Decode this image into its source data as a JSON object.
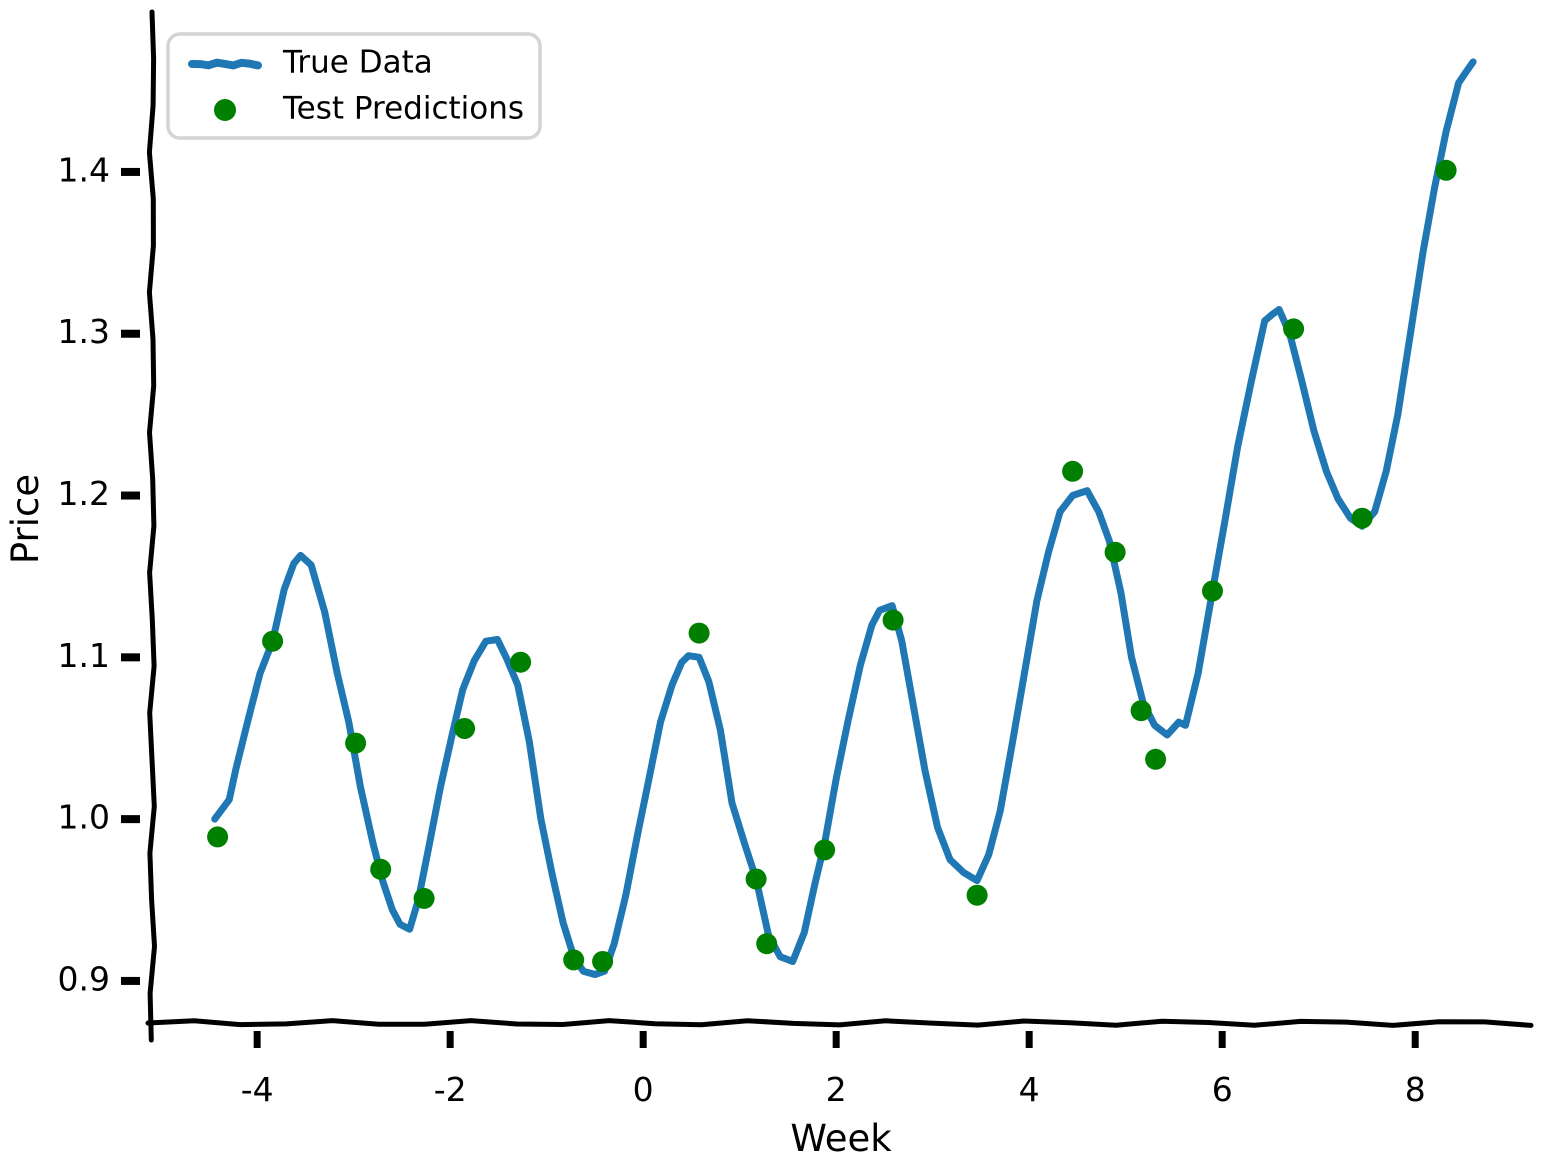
{
  "figure": {
    "background": "#ffffff",
    "style": "xkcd-sketch"
  },
  "legend": {
    "items": [
      {
        "label": "True Data",
        "marker": "line",
        "color": "#1f77b4"
      },
      {
        "label": "Test Predictions",
        "marker": "dot",
        "color": "#008000"
      }
    ]
  },
  "axes": {
    "x_label": "Week",
    "y_label": "Price",
    "x_tick_labels": [
      "-4",
      "-2",
      "0",
      "2",
      "4",
      "6",
      "8"
    ],
    "y_tick_labels": [
      "0.9",
      "1.0",
      "1.1",
      "1.2",
      "1.3",
      "1.4"
    ]
  },
  "chart_data": {
    "type": "line",
    "title": "",
    "xlabel": "Week",
    "ylabel": "Price",
    "xlim": [
      -5.1,
      9.2
    ],
    "ylim": [
      0.874,
      1.497
    ],
    "x_ticks": [
      -4,
      -2,
      0,
      2,
      4,
      6,
      8
    ],
    "y_ticks": [
      0.9,
      1.0,
      1.1,
      1.2,
      1.3,
      1.4
    ],
    "grid": false,
    "legend_position": "upper left",
    "series": [
      {
        "name": "True Data",
        "type": "line",
        "color": "#1f77b4",
        "line_width": 7,
        "points": [
          [
            -4.44,
            1.0
          ],
          [
            -4.29,
            1.012
          ],
          [
            -4.22,
            1.031
          ],
          [
            -4.1,
            1.06
          ],
          [
            -3.97,
            1.09
          ],
          [
            -3.84,
            1.11
          ],
          [
            -3.72,
            1.142
          ],
          [
            -3.62,
            1.158
          ],
          [
            -3.55,
            1.163
          ],
          [
            -3.44,
            1.157
          ],
          [
            -3.3,
            1.128
          ],
          [
            -3.17,
            1.09
          ],
          [
            -3.05,
            1.06
          ],
          [
            -2.93,
            1.02
          ],
          [
            -2.8,
            0.985
          ],
          [
            -2.7,
            0.962
          ],
          [
            -2.6,
            0.944
          ],
          [
            -2.52,
            0.935
          ],
          [
            -2.42,
            0.932
          ],
          [
            -2.33,
            0.95
          ],
          [
            -2.22,
            0.983
          ],
          [
            -2.1,
            1.02
          ],
          [
            -1.98,
            1.052
          ],
          [
            -1.87,
            1.08
          ],
          [
            -1.75,
            1.098
          ],
          [
            -1.63,
            1.11
          ],
          [
            -1.51,
            1.111
          ],
          [
            -1.42,
            1.1
          ],
          [
            -1.3,
            1.083
          ],
          [
            -1.18,
            1.048
          ],
          [
            -1.06,
            1.0
          ],
          [
            -0.94,
            0.965
          ],
          [
            -0.83,
            0.936
          ],
          [
            -0.72,
            0.915
          ],
          [
            -0.62,
            0.906
          ],
          [
            -0.5,
            0.904
          ],
          [
            -0.4,
            0.906
          ],
          [
            -0.3,
            0.923
          ],
          [
            -0.18,
            0.953
          ],
          [
            -0.06,
            0.99
          ],
          [
            0.06,
            1.025
          ],
          [
            0.18,
            1.06
          ],
          [
            0.3,
            1.083
          ],
          [
            0.4,
            1.097
          ],
          [
            0.47,
            1.101
          ],
          [
            0.58,
            1.1
          ],
          [
            0.68,
            1.085
          ],
          [
            0.8,
            1.055
          ],
          [
            0.92,
            1.01
          ],
          [
            1.05,
            0.985
          ],
          [
            1.17,
            0.963
          ],
          [
            1.3,
            0.928
          ],
          [
            1.42,
            0.915
          ],
          [
            1.55,
            0.912
          ],
          [
            1.67,
            0.93
          ],
          [
            1.78,
            0.96
          ],
          [
            1.88,
            0.985
          ],
          [
            2.0,
            1.025
          ],
          [
            2.12,
            1.06
          ],
          [
            2.25,
            1.095
          ],
          [
            2.37,
            1.12
          ],
          [
            2.45,
            1.129
          ],
          [
            2.58,
            1.132
          ],
          [
            2.68,
            1.11
          ],
          [
            2.8,
            1.07
          ],
          [
            2.92,
            1.03
          ],
          [
            3.05,
            0.995
          ],
          [
            3.18,
            0.975
          ],
          [
            3.32,
            0.967
          ],
          [
            3.46,
            0.962
          ],
          [
            3.58,
            0.978
          ],
          [
            3.7,
            1.005
          ],
          [
            3.82,
            1.045
          ],
          [
            3.95,
            1.09
          ],
          [
            4.08,
            1.135
          ],
          [
            4.2,
            1.165
          ],
          [
            4.32,
            1.19
          ],
          [
            4.45,
            1.2
          ],
          [
            4.6,
            1.203
          ],
          [
            4.72,
            1.19
          ],
          [
            4.83,
            1.172
          ],
          [
            4.95,
            1.14
          ],
          [
            5.06,
            1.1
          ],
          [
            5.18,
            1.072
          ],
          [
            5.3,
            1.058
          ],
          [
            5.43,
            1.052
          ],
          [
            5.55,
            1.06
          ],
          [
            5.62,
            1.058
          ],
          [
            5.75,
            1.09
          ],
          [
            5.9,
            1.141
          ],
          [
            6.03,
            1.185
          ],
          [
            6.16,
            1.23
          ],
          [
            6.3,
            1.27
          ],
          [
            6.44,
            1.308
          ],
          [
            6.52,
            1.312
          ],
          [
            6.59,
            1.315
          ],
          [
            6.7,
            1.3
          ],
          [
            6.82,
            1.272
          ],
          [
            6.95,
            1.24
          ],
          [
            7.08,
            1.215
          ],
          [
            7.2,
            1.198
          ],
          [
            7.33,
            1.186
          ],
          [
            7.45,
            1.181
          ],
          [
            7.58,
            1.19
          ],
          [
            7.7,
            1.215
          ],
          [
            7.82,
            1.25
          ],
          [
            7.95,
            1.3
          ],
          [
            8.08,
            1.35
          ],
          [
            8.2,
            1.39
          ],
          [
            8.32,
            1.425
          ],
          [
            8.45,
            1.455
          ],
          [
            8.53,
            1.462
          ],
          [
            8.6,
            1.468
          ]
        ]
      },
      {
        "name": "Test Predictions",
        "type": "scatter",
        "color": "#008000",
        "marker_radius": 10.5,
        "points": [
          [
            -4.41,
            0.989
          ],
          [
            -3.84,
            1.11
          ],
          [
            -2.98,
            1.047
          ],
          [
            -2.72,
            0.969
          ],
          [
            -2.27,
            0.951
          ],
          [
            -1.85,
            1.056
          ],
          [
            -1.27,
            1.097
          ],
          [
            -0.72,
            0.913
          ],
          [
            -0.42,
            0.912
          ],
          [
            0.58,
            1.115
          ],
          [
            1.17,
            0.963
          ],
          [
            1.28,
            0.923
          ],
          [
            1.88,
            0.981
          ],
          [
            2.59,
            1.123
          ],
          [
            3.46,
            0.953
          ],
          [
            4.45,
            1.215
          ],
          [
            4.89,
            1.165
          ],
          [
            5.16,
            1.067
          ],
          [
            5.31,
            1.037
          ],
          [
            5.9,
            1.141
          ],
          [
            6.74,
            1.303
          ],
          [
            7.45,
            1.186
          ],
          [
            8.32,
            1.401
          ]
        ]
      }
    ]
  }
}
